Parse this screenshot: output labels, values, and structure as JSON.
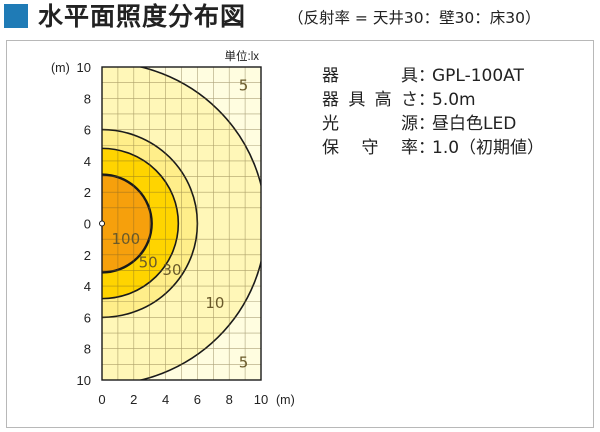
{
  "header": {
    "title": "水平面照度分布図",
    "subtitle": "（反射率 = 天井30：壁30：床30）",
    "accent_color": "#1f7bb6"
  },
  "specs": [
    {
      "label_chars": [
        "器",
        "具"
      ],
      "value": "GPL-100AT"
    },
    {
      "label_chars": [
        "器",
        "具",
        "高",
        "さ"
      ],
      "value": "5.0m"
    },
    {
      "label_chars": [
        "光",
        "源"
      ],
      "value": "昼白色LED"
    },
    {
      "label_chars": [
        "保",
        "守",
        "率"
      ],
      "value": "1.0（初期値）"
    }
  ],
  "chart_data": {
    "type": "contour",
    "unit_label": "単位:lx",
    "x_axis": {
      "unit": "(m)",
      "range": [
        0,
        10
      ],
      "ticks": [
        "0",
        "2",
        "4",
        "6",
        "8",
        "10"
      ]
    },
    "y_axis": {
      "unit": "(m)",
      "range": [
        10,
        -10
      ],
      "ticks": [
        "10",
        "8",
        "6",
        "4",
        "2",
        "0",
        "2",
        "4",
        "6",
        "8",
        "10"
      ]
    },
    "grid": true,
    "contours": [
      {
        "label": "5",
        "value": 5,
        "radius": 10.3,
        "color": "#fff7b8"
      },
      {
        "label": "10",
        "value": 10,
        "radius": 6.0,
        "color": "#ffee8a"
      },
      {
        "label": "30",
        "value": 30,
        "radius": 4.8,
        "color": "#ffd400"
      },
      {
        "label": "50",
        "value": 50,
        "radius": 3.15,
        "color": "#fbb615"
      },
      {
        "label": "100",
        "value": 100,
        "radius": 3.1,
        "color": "#f6a00c"
      }
    ],
    "outer_background": "#fffde0"
  },
  "colon": "："
}
